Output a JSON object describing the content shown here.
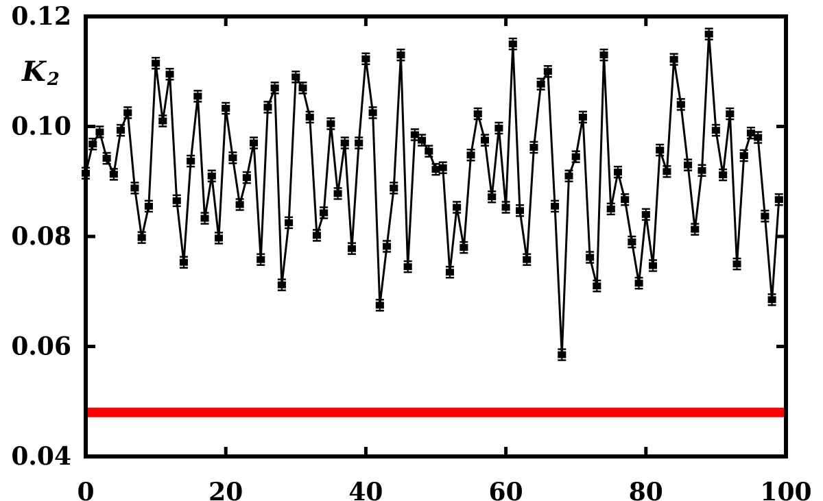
{
  "chart_data": {
    "type": "line",
    "title": "",
    "xlabel": "",
    "ylabel": "K",
    "ylabel_subscript": "2",
    "xlim": [
      0,
      100
    ],
    "ylim": [
      0.04,
      0.12
    ],
    "x_ticks": [
      0,
      20,
      40,
      60,
      80,
      100
    ],
    "x_tick_labels": [
      "0",
      "20",
      "40",
      "60",
      "80",
      "100"
    ],
    "y_ticks": [
      0.04,
      0.06,
      0.08,
      0.1,
      0.12
    ],
    "y_tick_labels": [
      "0.04",
      "0.06",
      "0.08",
      "0.10",
      "0.12"
    ],
    "grid": false,
    "series": [
      {
        "color": "#000000",
        "x": [
          0,
          1,
          2,
          3,
          4,
          5,
          6,
          7,
          8,
          9,
          10,
          11,
          12,
          13,
          14,
          15,
          16,
          17,
          18,
          19,
          20,
          21,
          22,
          23,
          24,
          25,
          26,
          27,
          28,
          29,
          30,
          31,
          32,
          33,
          34,
          35,
          36,
          37,
          38,
          39,
          40,
          41,
          42,
          43,
          44,
          45,
          46,
          47,
          48,
          49,
          50,
          51,
          52,
          53,
          54,
          55,
          56,
          57,
          58,
          59,
          60,
          61,
          62,
          63,
          64,
          65,
          66,
          67,
          68,
          69,
          70,
          71,
          72,
          73,
          74,
          75,
          76,
          77,
          78,
          79,
          80,
          81,
          82,
          83,
          84,
          85,
          86,
          87,
          88,
          89,
          90,
          91,
          92,
          93,
          94,
          95,
          96,
          97,
          98,
          99
        ],
        "y": [
          0.0915,
          0.0968,
          0.099,
          0.0942,
          0.0913,
          0.0993,
          0.1025,
          0.0888,
          0.0798,
          0.0855,
          0.1115,
          0.101,
          0.1095,
          0.0865,
          0.0753,
          0.0937,
          0.1055,
          0.0833,
          0.091,
          0.0797,
          0.1033,
          0.0943,
          0.0858,
          0.0907,
          0.097,
          0.0758,
          0.1035,
          0.107,
          0.0712,
          0.0825,
          0.109,
          0.107,
          0.1017,
          0.0802,
          0.0843,
          0.1005,
          0.0878,
          0.097,
          0.0778,
          0.097,
          0.1123,
          0.1025,
          0.0675,
          0.0782,
          0.0888,
          0.113,
          0.0745,
          0.0985,
          0.0975,
          0.0955,
          0.0922,
          0.0925,
          0.0735,
          0.0853,
          0.078,
          0.0948,
          0.1023,
          0.0975,
          0.0872,
          0.0997,
          0.0853,
          0.115,
          0.0847,
          0.0758,
          0.0962,
          0.1077,
          0.11,
          0.0855,
          0.0585,
          0.091,
          0.0945,
          0.1017,
          0.0762,
          0.071,
          0.113,
          0.085,
          0.0917,
          0.0867,
          0.079,
          0.0715,
          0.084,
          0.0747,
          0.0957,
          0.0918,
          0.1122,
          0.104,
          0.093,
          0.0813,
          0.092,
          0.1168,
          0.0993,
          0.0912,
          0.1023,
          0.075,
          0.0947,
          0.0988,
          0.098,
          0.0837,
          0.0685,
          0.0867
        ]
      },
      {
        "color": "#ff0000",
        "x": [
          0,
          100
        ],
        "y": [
          0.048,
          0.048
        ]
      }
    ]
  }
}
